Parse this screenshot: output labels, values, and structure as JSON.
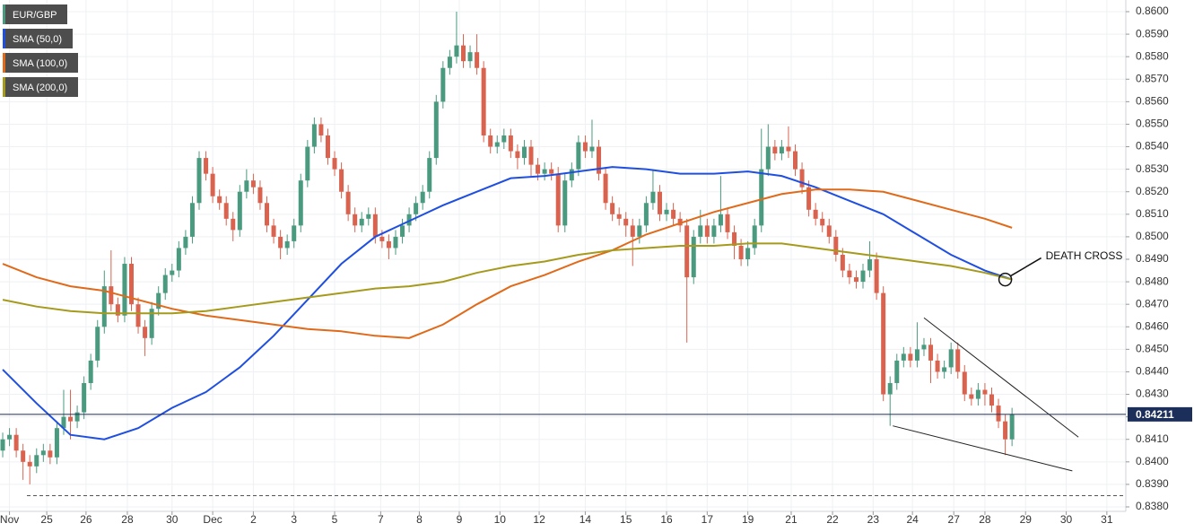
{
  "chart_data": {
    "type": "candlestick",
    "series": [
      {
        "name": "EUR/GBP",
        "color": "#4a9a7f",
        "color_down": "#d9634f",
        "open": [
          0.8405,
          0.841,
          0.8412,
          0.8405,
          0.84,
          0.8398,
          0.8403,
          0.8405,
          0.8402,
          0.8415,
          0.842,
          0.8418,
          0.8422,
          0.8435,
          0.8445,
          0.846,
          0.8478,
          0.847,
          0.8465,
          0.8488,
          0.847,
          0.846,
          0.8455,
          0.8468,
          0.8475,
          0.8483,
          0.8485,
          0.8495,
          0.85,
          0.8515,
          0.8535,
          0.8528,
          0.8518,
          0.8515,
          0.8508,
          0.8503,
          0.852,
          0.8525,
          0.8522,
          0.8515,
          0.8505,
          0.85,
          0.8495,
          0.8498,
          0.8505,
          0.8525,
          0.854,
          0.855,
          0.8545,
          0.8535,
          0.853,
          0.852,
          0.851,
          0.8505,
          0.8508,
          0.851,
          0.85,
          0.8498,
          0.8495,
          0.85,
          0.8505,
          0.851,
          0.8515,
          0.852,
          0.8535,
          0.856,
          0.8575,
          0.858,
          0.8585,
          0.8578,
          0.8582,
          0.8575,
          0.8545,
          0.854,
          0.8542,
          0.8545,
          0.8538,
          0.8535,
          0.854,
          0.8532,
          0.8528,
          0.853,
          0.8528,
          0.8505,
          0.8525,
          0.853,
          0.8542,
          0.8538,
          0.854,
          0.8528,
          0.8515,
          0.851,
          0.8508,
          0.8505,
          0.85,
          0.8505,
          0.8515,
          0.852,
          0.851,
          0.8512,
          0.8508,
          0.8505,
          0.8482,
          0.85,
          0.8505,
          0.85,
          0.8505,
          0.851,
          0.8502,
          0.8496,
          0.849,
          0.8495,
          0.8505,
          0.853,
          0.854,
          0.8537,
          0.854,
          0.8538,
          0.853,
          0.8522,
          0.8512,
          0.8508,
          0.8505,
          0.85,
          0.8492,
          0.8485,
          0.8482,
          0.848,
          0.8485,
          0.849,
          0.8475,
          0.843,
          0.8435,
          0.8445,
          0.8448,
          0.8445,
          0.845,
          0.8452,
          0.8445,
          0.844,
          0.8442,
          0.845,
          0.844,
          0.843,
          0.8428,
          0.8432,
          0.843,
          0.8425,
          0.8418,
          0.841
        ],
        "high": [
          0.8413,
          0.8415,
          0.8415,
          0.8408,
          0.8403,
          0.8406,
          0.8408,
          0.8408,
          0.8418,
          0.8432,
          0.8432,
          0.8425,
          0.8438,
          0.8448,
          0.8463,
          0.8485,
          0.8494,
          0.8473,
          0.8491,
          0.8491,
          0.8473,
          0.8463,
          0.8471,
          0.8478,
          0.8486,
          0.8488,
          0.8498,
          0.8503,
          0.8518,
          0.8538,
          0.8538,
          0.8531,
          0.8521,
          0.8518,
          0.8511,
          0.8523,
          0.853,
          0.8528,
          0.8525,
          0.8518,
          0.8508,
          0.8503,
          0.8501,
          0.8508,
          0.8528,
          0.8543,
          0.8553,
          0.8553,
          0.8548,
          0.8538,
          0.8533,
          0.8523,
          0.8513,
          0.8511,
          0.8513,
          0.8513,
          0.8503,
          0.8501,
          0.8503,
          0.8508,
          0.8513,
          0.8518,
          0.8523,
          0.8538,
          0.8563,
          0.8578,
          0.8583,
          0.86,
          0.859,
          0.8585,
          0.859,
          0.8578,
          0.8548,
          0.8545,
          0.8548,
          0.8548,
          0.8541,
          0.8543,
          0.8543,
          0.8535,
          0.8533,
          0.8533,
          0.8531,
          0.8528,
          0.8533,
          0.8545,
          0.8545,
          0.8552,
          0.8543,
          0.8531,
          0.8518,
          0.8513,
          0.8511,
          0.8508,
          0.8508,
          0.8518,
          0.853,
          0.8523,
          0.8515,
          0.8515,
          0.8511,
          0.8508,
          0.8503,
          0.8512,
          0.8508,
          0.8508,
          0.8527,
          0.8513,
          0.8505,
          0.8499,
          0.8498,
          0.8508,
          0.8548,
          0.855,
          0.8543,
          0.8543,
          0.8549,
          0.8541,
          0.8533,
          0.8525,
          0.8515,
          0.8511,
          0.8508,
          0.8503,
          0.8495,
          0.8488,
          0.8485,
          0.8488,
          0.8498,
          0.8493,
          0.8478,
          0.8438,
          0.8448,
          0.8451,
          0.8451,
          0.8462,
          0.8455,
          0.8455,
          0.8448,
          0.8445,
          0.8453,
          0.8453,
          0.8443,
          0.8433,
          0.8435,
          0.8435,
          0.8433,
          0.8428,
          0.8421,
          0.8424
        ],
        "low": [
          0.8402,
          0.8407,
          0.8402,
          0.8392,
          0.839,
          0.8395,
          0.84,
          0.8399,
          0.8399,
          0.8412,
          0.841,
          0.8415,
          0.8419,
          0.8432,
          0.8442,
          0.8457,
          0.8467,
          0.8462,
          0.8462,
          0.8467,
          0.8457,
          0.8447,
          0.8452,
          0.8465,
          0.8472,
          0.848,
          0.8482,
          0.8492,
          0.8497,
          0.8512,
          0.8525,
          0.8515,
          0.8512,
          0.8505,
          0.8498,
          0.85,
          0.8517,
          0.8519,
          0.8512,
          0.8502,
          0.8497,
          0.849,
          0.8492,
          0.8495,
          0.8502,
          0.8522,
          0.8537,
          0.8542,
          0.8532,
          0.8527,
          0.8517,
          0.8507,
          0.8502,
          0.8502,
          0.8505,
          0.8497,
          0.8495,
          0.849,
          0.8492,
          0.8497,
          0.8502,
          0.8507,
          0.8512,
          0.8517,
          0.8532,
          0.8557,
          0.8572,
          0.8577,
          0.8575,
          0.8575,
          0.8572,
          0.8542,
          0.8537,
          0.8537,
          0.8539,
          0.8535,
          0.853,
          0.8532,
          0.8527,
          0.8525,
          0.8525,
          0.8525,
          0.8502,
          0.8502,
          0.8522,
          0.8527,
          0.8535,
          0.8535,
          0.8525,
          0.8512,
          0.8507,
          0.8505,
          0.85,
          0.8487,
          0.8497,
          0.8502,
          0.8512,
          0.8507,
          0.8507,
          0.8505,
          0.8502,
          0.8453,
          0.8479,
          0.8497,
          0.8497,
          0.8497,
          0.8502,
          0.8499,
          0.849,
          0.8487,
          0.8487,
          0.8492,
          0.8502,
          0.8527,
          0.8534,
          0.8534,
          0.8535,
          0.8527,
          0.8519,
          0.8509,
          0.8505,
          0.8502,
          0.8497,
          0.8489,
          0.8482,
          0.8479,
          0.8477,
          0.8477,
          0.8482,
          0.8472,
          0.8427,
          0.8416,
          0.8432,
          0.8442,
          0.8442,
          0.8442,
          0.8447,
          0.8435,
          0.8437,
          0.8437,
          0.8439,
          0.8437,
          0.8427,
          0.8425,
          0.8425,
          0.8425,
          0.8422,
          0.8415,
          0.8403,
          0.8407
        ],
        "close": [
          0.841,
          0.8412,
          0.8405,
          0.84,
          0.8398,
          0.8403,
          0.8405,
          0.8402,
          0.8415,
          0.842,
          0.8418,
          0.8422,
          0.8435,
          0.8445,
          0.846,
          0.8478,
          0.847,
          0.8465,
          0.8488,
          0.847,
          0.846,
          0.8455,
          0.8468,
          0.8475,
          0.8483,
          0.8485,
          0.8495,
          0.85,
          0.8515,
          0.8535,
          0.8528,
          0.8518,
          0.8515,
          0.8508,
          0.8503,
          0.852,
          0.8525,
          0.8522,
          0.8515,
          0.8505,
          0.85,
          0.8495,
          0.8498,
          0.8505,
          0.8525,
          0.854,
          0.855,
          0.8545,
          0.8535,
          0.853,
          0.852,
          0.851,
          0.8505,
          0.8508,
          0.851,
          0.85,
          0.8498,
          0.8495,
          0.85,
          0.8505,
          0.851,
          0.8515,
          0.852,
          0.8535,
          0.856,
          0.8575,
          0.858,
          0.8585,
          0.8578,
          0.8582,
          0.8575,
          0.8545,
          0.854,
          0.8542,
          0.8545,
          0.8538,
          0.8535,
          0.854,
          0.8532,
          0.8528,
          0.853,
          0.8528,
          0.8505,
          0.8525,
          0.853,
          0.8542,
          0.8538,
          0.854,
          0.8528,
          0.8515,
          0.851,
          0.8508,
          0.8505,
          0.85,
          0.8505,
          0.8515,
          0.852,
          0.851,
          0.8512,
          0.8508,
          0.8505,
          0.8482,
          0.85,
          0.8505,
          0.85,
          0.8505,
          0.851,
          0.8502,
          0.8496,
          0.849,
          0.8495,
          0.8505,
          0.853,
          0.854,
          0.8537,
          0.854,
          0.8538,
          0.853,
          0.8522,
          0.8512,
          0.8508,
          0.8505,
          0.85,
          0.8492,
          0.8485,
          0.8482,
          0.848,
          0.8485,
          0.849,
          0.8475,
          0.843,
          0.8435,
          0.8445,
          0.8448,
          0.8445,
          0.845,
          0.8452,
          0.8445,
          0.844,
          0.8442,
          0.845,
          0.844,
          0.843,
          0.8428,
          0.8432,
          0.843,
          0.8425,
          0.8418,
          0.841,
          0.8421
        ]
      },
      {
        "name": "SMA (50,0)",
        "type": "line",
        "color": "#1f4fe0",
        "x": [
          0,
          5,
          10,
          15,
          20,
          25,
          30,
          35,
          40,
          45,
          50,
          55,
          60,
          65,
          70,
          75,
          80,
          85,
          90,
          95,
          100,
          105,
          110,
          115,
          120,
          125,
          130,
          135,
          140,
          145,
          149
        ],
        "values": [
          0.8441,
          0.8426,
          0.8412,
          0.841,
          0.8415,
          0.8424,
          0.8431,
          0.8442,
          0.8456,
          0.8472,
          0.8488,
          0.85,
          0.8507,
          0.8514,
          0.852,
          0.8526,
          0.8527,
          0.8529,
          0.8531,
          0.853,
          0.8528,
          0.8528,
          0.8529,
          0.8527,
          0.8522,
          0.8516,
          0.851,
          0.8501,
          0.8492,
          0.8485,
          0.8481
        ]
      },
      {
        "name": "SMA (100,0)",
        "type": "line",
        "color": "#e06a1a",
        "x": [
          0,
          5,
          10,
          15,
          20,
          25,
          30,
          35,
          40,
          45,
          50,
          55,
          60,
          65,
          70,
          75,
          80,
          85,
          90,
          95,
          100,
          105,
          110,
          115,
          120,
          125,
          130,
          135,
          140,
          145,
          149
        ],
        "values": [
          0.8488,
          0.8482,
          0.8478,
          0.8476,
          0.8472,
          0.8468,
          0.8465,
          0.8463,
          0.8461,
          0.8459,
          0.8458,
          0.8456,
          0.8455,
          0.8461,
          0.847,
          0.8478,
          0.8483,
          0.8489,
          0.8494,
          0.8501,
          0.8506,
          0.8511,
          0.8515,
          0.8519,
          0.8521,
          0.8521,
          0.852,
          0.8516,
          0.8512,
          0.8508,
          0.8504
        ]
      },
      {
        "name": "SMA (200,0)",
        "type": "line",
        "color": "#a59a1c",
        "x": [
          0,
          5,
          10,
          15,
          20,
          25,
          30,
          35,
          40,
          45,
          50,
          55,
          60,
          65,
          70,
          75,
          80,
          85,
          90,
          95,
          100,
          105,
          110,
          115,
          120,
          125,
          130,
          135,
          140,
          145,
          149
        ],
        "values": [
          0.8472,
          0.8469,
          0.8467,
          0.8466,
          0.8466,
          0.8466,
          0.8467,
          0.8469,
          0.8471,
          0.8473,
          0.8475,
          0.8477,
          0.8478,
          0.848,
          0.8484,
          0.8487,
          0.8489,
          0.8492,
          0.8494,
          0.8495,
          0.8496,
          0.8496,
          0.8497,
          0.8497,
          0.8495,
          0.8493,
          0.8491,
          0.8489,
          0.8487,
          0.8484,
          0.8481
        ]
      }
    ],
    "xlim": [
      -0.4,
      165.8
    ],
    "xticks": [
      {
        "value": 1,
        "label": "Nov"
      },
      {
        "value": 6.5,
        "label": "25"
      },
      {
        "value": 12.3,
        "label": "26"
      },
      {
        "value": 18.4,
        "label": "28"
      },
      {
        "value": 25,
        "label": "30"
      },
      {
        "value": 31,
        "label": "Dec"
      },
      {
        "value": 37,
        "label": "2"
      },
      {
        "value": 43,
        "label": "3"
      },
      {
        "value": 49,
        "label": "5"
      },
      {
        "value": 55.8,
        "label": "7"
      },
      {
        "value": 61.5,
        "label": "8"
      },
      {
        "value": 67.4,
        "label": "9"
      },
      {
        "value": 73.4,
        "label": "10"
      },
      {
        "value": 79.2,
        "label": "12"
      },
      {
        "value": 86,
        "label": "14"
      },
      {
        "value": 92,
        "label": "15"
      },
      {
        "value": 98,
        "label": "16"
      },
      {
        "value": 104,
        "label": "17"
      },
      {
        "value": 110,
        "label": "19"
      },
      {
        "value": 116.4,
        "label": "21"
      },
      {
        "value": 122.5,
        "label": "22"
      },
      {
        "value": 128.5,
        "label": "23"
      },
      {
        "value": 134.3,
        "label": "24"
      },
      {
        "value": 140.4,
        "label": "27"
      },
      {
        "value": 145,
        "label": "28"
      },
      {
        "value": 151,
        "label": "29"
      },
      {
        "value": 157,
        "label": "30"
      },
      {
        "value": 163,
        "label": "31"
      }
    ],
    "ylim": [
      0.838,
      0.86
    ],
    "yticks": [
      {
        "value": 0.838,
        "label": "0.8380"
      },
      {
        "value": 0.839,
        "label": "0.8390"
      },
      {
        "value": 0.84,
        "label": "0.8400"
      },
      {
        "value": 0.841,
        "label": "0.8410"
      },
      {
        "value": 0.842,
        "label": "0.8420"
      },
      {
        "value": 0.843,
        "label": "0.8430"
      },
      {
        "value": 0.844,
        "label": "0.8440"
      },
      {
        "value": 0.845,
        "label": "0.8450"
      },
      {
        "value": 0.846,
        "label": "0.8460"
      },
      {
        "value": 0.847,
        "label": "0.8470"
      },
      {
        "value": 0.848,
        "label": "0.8480"
      },
      {
        "value": 0.849,
        "label": "0.8490"
      },
      {
        "value": 0.85,
        "label": "0.8500"
      },
      {
        "value": 0.851,
        "label": "0.8510"
      },
      {
        "value": 0.852,
        "label": "0.8520"
      },
      {
        "value": 0.853,
        "label": "0.8530"
      },
      {
        "value": 0.854,
        "label": "0.8540"
      },
      {
        "value": 0.855,
        "label": "0.8550"
      },
      {
        "value": 0.856,
        "label": "0.8560"
      },
      {
        "value": 0.857,
        "label": "0.8570"
      },
      {
        "value": 0.858,
        "label": "0.8580"
      },
      {
        "value": 0.859,
        "label": "0.8590"
      },
      {
        "value": 0.86,
        "label": "0.8600"
      }
    ],
    "grid": true,
    "last_price": 0.84211,
    "reference_line": 0.8385,
    "annotations": [
      {
        "text": "DEATH CROSS",
        "x": 148,
        "y": 0.8481
      }
    ],
    "trendlines": [
      {
        "x": [
          136,
          158.8
        ],
        "y": [
          0.8464,
          0.8411
        ]
      },
      {
        "x": [
          131.4,
          157.9
        ],
        "y": [
          0.8416,
          0.8396
        ]
      }
    ]
  }
}
